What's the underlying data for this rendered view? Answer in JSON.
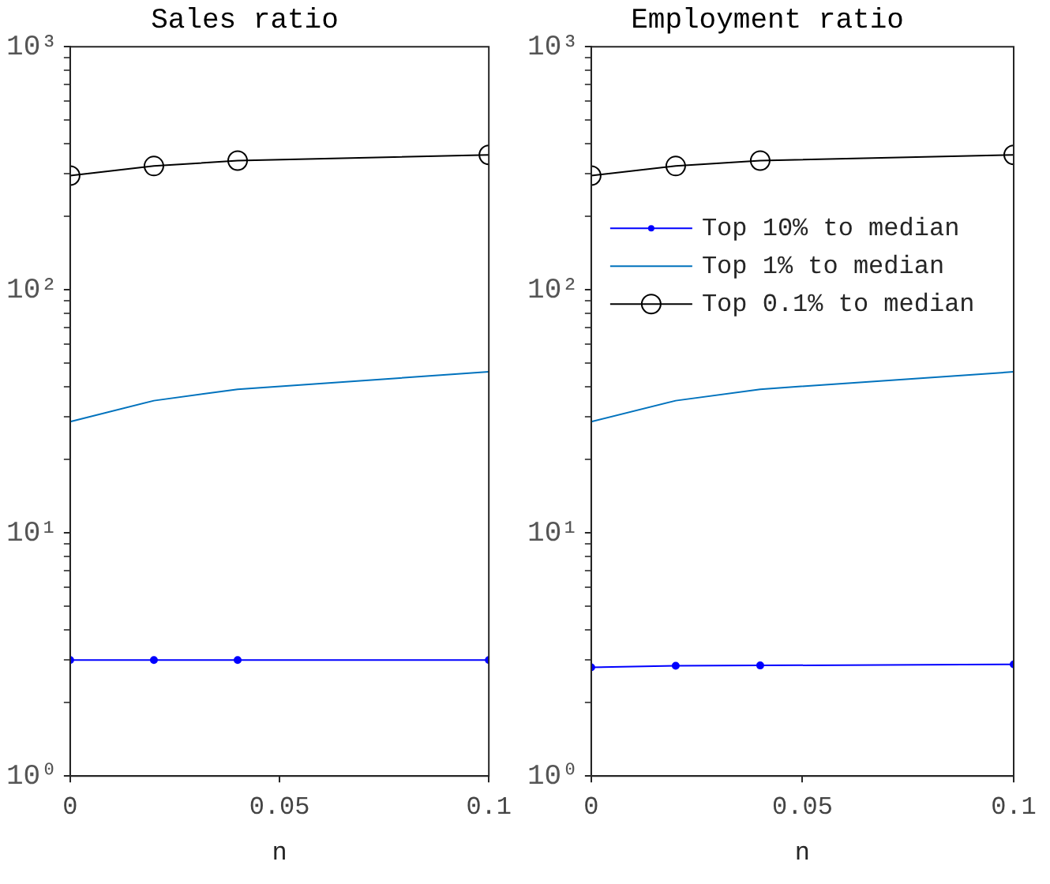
{
  "chart_data": [
    {
      "type": "line",
      "title": "Sales ratio",
      "xlabel": "n",
      "log": "y",
      "grid": false,
      "legend": false,
      "x": [
        0,
        0.02,
        0.04,
        0.1
      ],
      "xlim": [
        0,
        0.1
      ],
      "xticks": [
        0,
        0.05,
        0.1
      ],
      "ylim": [
        1,
        1000
      ],
      "yticks": [
        {
          "value": 1,
          "label": "10⁰"
        },
        {
          "value": 2,
          "label": null
        },
        {
          "value": 3,
          "label": null
        },
        {
          "value": 4,
          "label": null
        },
        {
          "value": 5,
          "label": null
        },
        {
          "value": 6,
          "label": null
        },
        {
          "value": 7,
          "label": null
        },
        {
          "value": 8,
          "label": null
        },
        {
          "value": 9,
          "label": null
        },
        {
          "value": 10,
          "label": "10¹"
        },
        {
          "value": 20,
          "label": null
        },
        {
          "value": 30,
          "label": null
        },
        {
          "value": 40,
          "label": null
        },
        {
          "value": 50,
          "label": null
        },
        {
          "value": 60,
          "label": null
        },
        {
          "value": 70,
          "label": null
        },
        {
          "value": 80,
          "label": null
        },
        {
          "value": 90,
          "label": null
        },
        {
          "value": 100,
          "label": "10²"
        },
        {
          "value": 200,
          "label": null
        },
        {
          "value": 300,
          "label": null
        },
        {
          "value": 400,
          "label": null
        },
        {
          "value": 500,
          "label": null
        },
        {
          "value": 600,
          "label": null
        },
        {
          "value": 700,
          "label": null
        },
        {
          "value": 800,
          "label": null
        },
        {
          "value": 900,
          "label": null
        },
        {
          "value": 1000,
          "label": "10³"
        }
      ],
      "series": [
        {
          "color": "#0000ff",
          "marker": "circle",
          "values": [
            3.0,
            3.0,
            3.0,
            3.0
          ]
        },
        {
          "color": "#0072bd",
          "marker": "none",
          "values": [
            28.7,
            35,
            39,
            46
          ]
        },
        {
          "color": "#000000",
          "marker": "circle",
          "values": [
            295,
            323,
            340,
            359
          ]
        }
      ]
    },
    {
      "type": "line",
      "title": "Employment ratio",
      "xlabel": "n",
      "log": "y",
      "grid": false,
      "legend": "top right",
      "x": [
        0,
        0.02,
        0.04,
        0.1
      ],
      "xlim": [
        0,
        0.1
      ],
      "xticks": [
        0,
        0.05,
        0.1
      ],
      "ylim": [
        1,
        1000
      ],
      "yticks": [
        {
          "value": 1,
          "label": "10⁰"
        },
        {
          "value": 2,
          "label": null
        },
        {
          "value": 3,
          "label": null
        },
        {
          "value": 4,
          "label": null
        },
        {
          "value": 5,
          "label": null
        },
        {
          "value": 6,
          "label": null
        },
        {
          "value": 7,
          "label": null
        },
        {
          "value": 8,
          "label": null
        },
        {
          "value": 9,
          "label": null
        },
        {
          "value": 10,
          "label": "10¹"
        },
        {
          "value": 20,
          "label": null
        },
        {
          "value": 30,
          "label": null
        },
        {
          "value": 40,
          "label": null
        },
        {
          "value": 50,
          "label": null
        },
        {
          "value": 60,
          "label": null
        },
        {
          "value": 70,
          "label": null
        },
        {
          "value": 80,
          "label": null
        },
        {
          "value": 90,
          "label": null
        },
        {
          "value": 100,
          "label": "10²"
        },
        {
          "value": 200,
          "label": null
        },
        {
          "value": 300,
          "label": null
        },
        {
          "value": 400,
          "label": null
        },
        {
          "value": 500,
          "label": null
        },
        {
          "value": 600,
          "label": null
        },
        {
          "value": 700,
          "label": null
        },
        {
          "value": 800,
          "label": null
        },
        {
          "value": 900,
          "label": null
        },
        {
          "value": 1000,
          "label": "10³"
        }
      ],
      "series": [
        {
          "name": "Top 10% to median",
          "color": "#0000ff",
          "marker": "circle",
          "values": [
            2.8,
            2.84,
            2.85,
            2.88
          ]
        },
        {
          "name": "Top 1% to median",
          "color": "#0072bd",
          "marker": "none",
          "values": [
            28.7,
            35,
            39,
            46
          ]
        },
        {
          "name": "Top 0.1% to median",
          "color": "#000000",
          "marker": "circle",
          "values": [
            295,
            323,
            340,
            359
          ]
        }
      ]
    }
  ]
}
